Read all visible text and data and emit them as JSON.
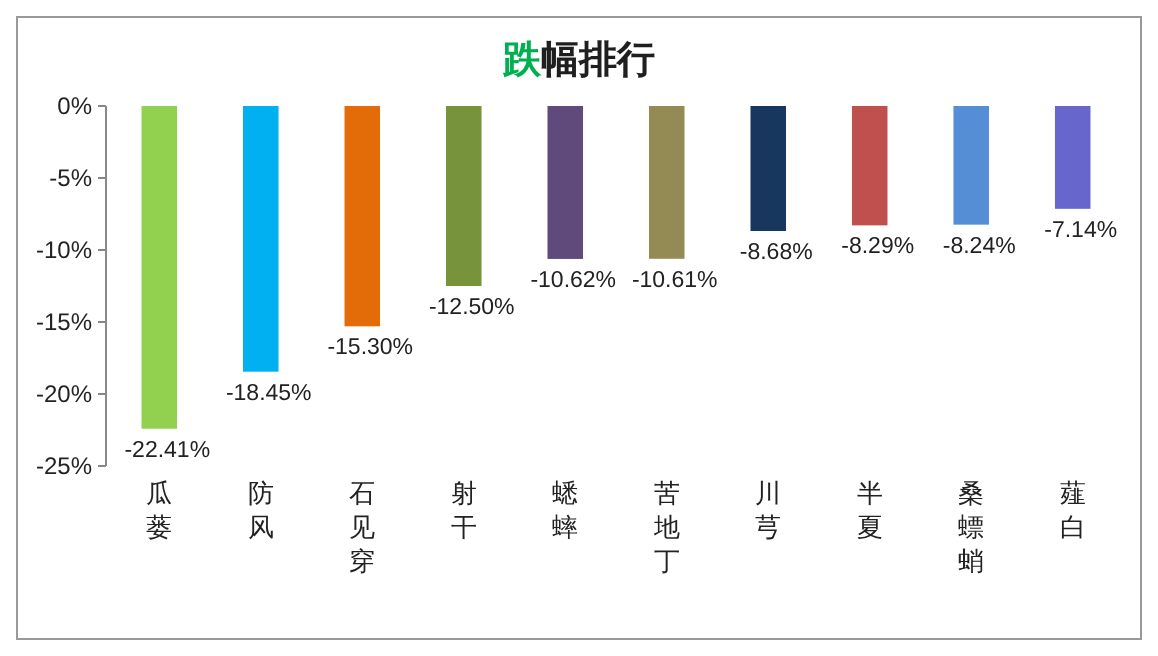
{
  "chart_data": {
    "type": "bar",
    "title": "跌幅排行",
    "categories": [
      "瓜蒌",
      "防风",
      "石见穿",
      "射干",
      "蟋蟀",
      "苦地丁",
      "川芎",
      "半夏",
      "桑螵蛸",
      "薤白"
    ],
    "values": [
      -22.41,
      -18.45,
      -15.3,
      -12.5,
      -10.62,
      -10.61,
      -8.68,
      -8.29,
      -8.24,
      -7.14
    ],
    "colors": [
      "#92d050",
      "#00b0f0",
      "#e36c09",
      "#77933c",
      "#604a7b",
      "#948a54",
      "#17375e",
      "#c0504d",
      "#558ed5",
      "#6666cc"
    ],
    "value_labels": [
      "-22.41%",
      "-18.45%",
      "-15.30%",
      "-12.50%",
      "-10.62%",
      "-10.61%",
      "-8.68%",
      "-8.29%",
      "-8.24%",
      "-7.14%"
    ],
    "ylim": [
      -25,
      0
    ],
    "yticks": [
      {
        "value": 0,
        "label": "0%"
      },
      {
        "value": -5,
        "label": "-5%"
      },
      {
        "value": -10,
        "label": "-10%"
      },
      {
        "value": -15,
        "label": "-15%"
      },
      {
        "value": -20,
        "label": "-20%"
      },
      {
        "value": -25,
        "label": "-25%"
      }
    ],
    "grid": false
  }
}
